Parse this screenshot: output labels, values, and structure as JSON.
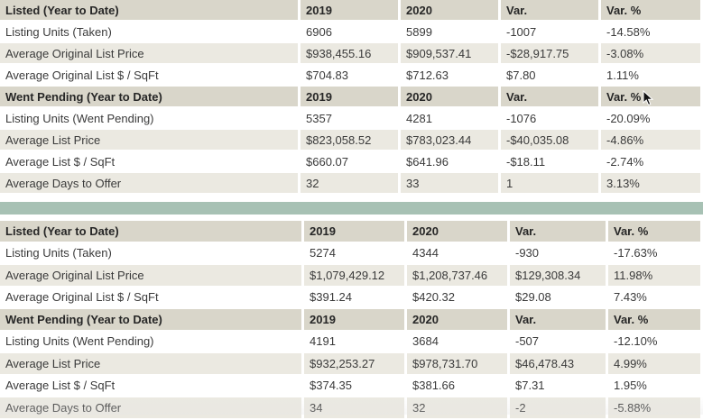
{
  "top": {
    "sections": [
      {
        "header": [
          "Listed (Year to Date)",
          "2019",
          "2020",
          "Var.",
          "Var. %"
        ],
        "rows": [
          [
            "Listing Units (Taken)",
            "6906",
            "5899",
            "-1007",
            "-14.58%"
          ],
          [
            "Average Original List Price",
            "$938,455.16",
            "$909,537.41",
            "-$28,917.75",
            "-3.08%"
          ],
          [
            "Average Original List $ / SqFt",
            "$704.83",
            "$712.63",
            "$7.80",
            "1.11%"
          ]
        ]
      },
      {
        "header": [
          "Went Pending (Year to Date)",
          "2019",
          "2020",
          "Var.",
          "Var. %"
        ],
        "rows": [
          [
            "Listing Units (Went Pending)",
            "5357",
            "4281",
            "-1076",
            "-20.09%"
          ],
          [
            "Average List Price",
            "$823,058.52",
            "$783,023.44",
            "-$40,035.08",
            "-4.86%"
          ],
          [
            "Average List $ / SqFt",
            "$660.07",
            "$641.96",
            "-$18.11",
            "-2.74%"
          ],
          [
            "Average Days to Offer",
            "32",
            "33",
            "1",
            "3.13%"
          ]
        ]
      }
    ]
  },
  "bottom": {
    "sections": [
      {
        "header": [
          "Listed (Year to Date)",
          "2019",
          "2020",
          "Var.",
          "Var. %"
        ],
        "rows": [
          [
            "Listing Units (Taken)",
            "5274",
            "4344",
            "-930",
            "-17.63%"
          ],
          [
            "Average Original List Price",
            "$1,079,429.12",
            "$1,208,737.46",
            "$129,308.34",
            "11.98%"
          ],
          [
            "Average Original List $ / SqFt",
            "$391.24",
            "$420.32",
            "$29.08",
            "7.43%"
          ]
        ]
      },
      {
        "header": [
          "Went Pending (Year to Date)",
          "2019",
          "2020",
          "Var.",
          "Var. %"
        ],
        "rows": [
          [
            "Listing Units (Went Pending)",
            "4191",
            "3684",
            "-507",
            "-12.10%"
          ],
          [
            "Average List Price",
            "$932,253.27",
            "$978,731.70",
            "$46,478.43",
            "4.99%"
          ],
          [
            "Average List $ / SqFt",
            "$374.35",
            "$381.66",
            "$7.31",
            "1.95%"
          ],
          [
            "Average Days to Offer",
            "34",
            "32",
            "-2",
            "-5.88%"
          ]
        ]
      }
    ]
  },
  "colors": {
    "header_bg": "#d9d6ca",
    "stripe_bg": "#ebe9e1",
    "divider": "#a7c1b4"
  }
}
